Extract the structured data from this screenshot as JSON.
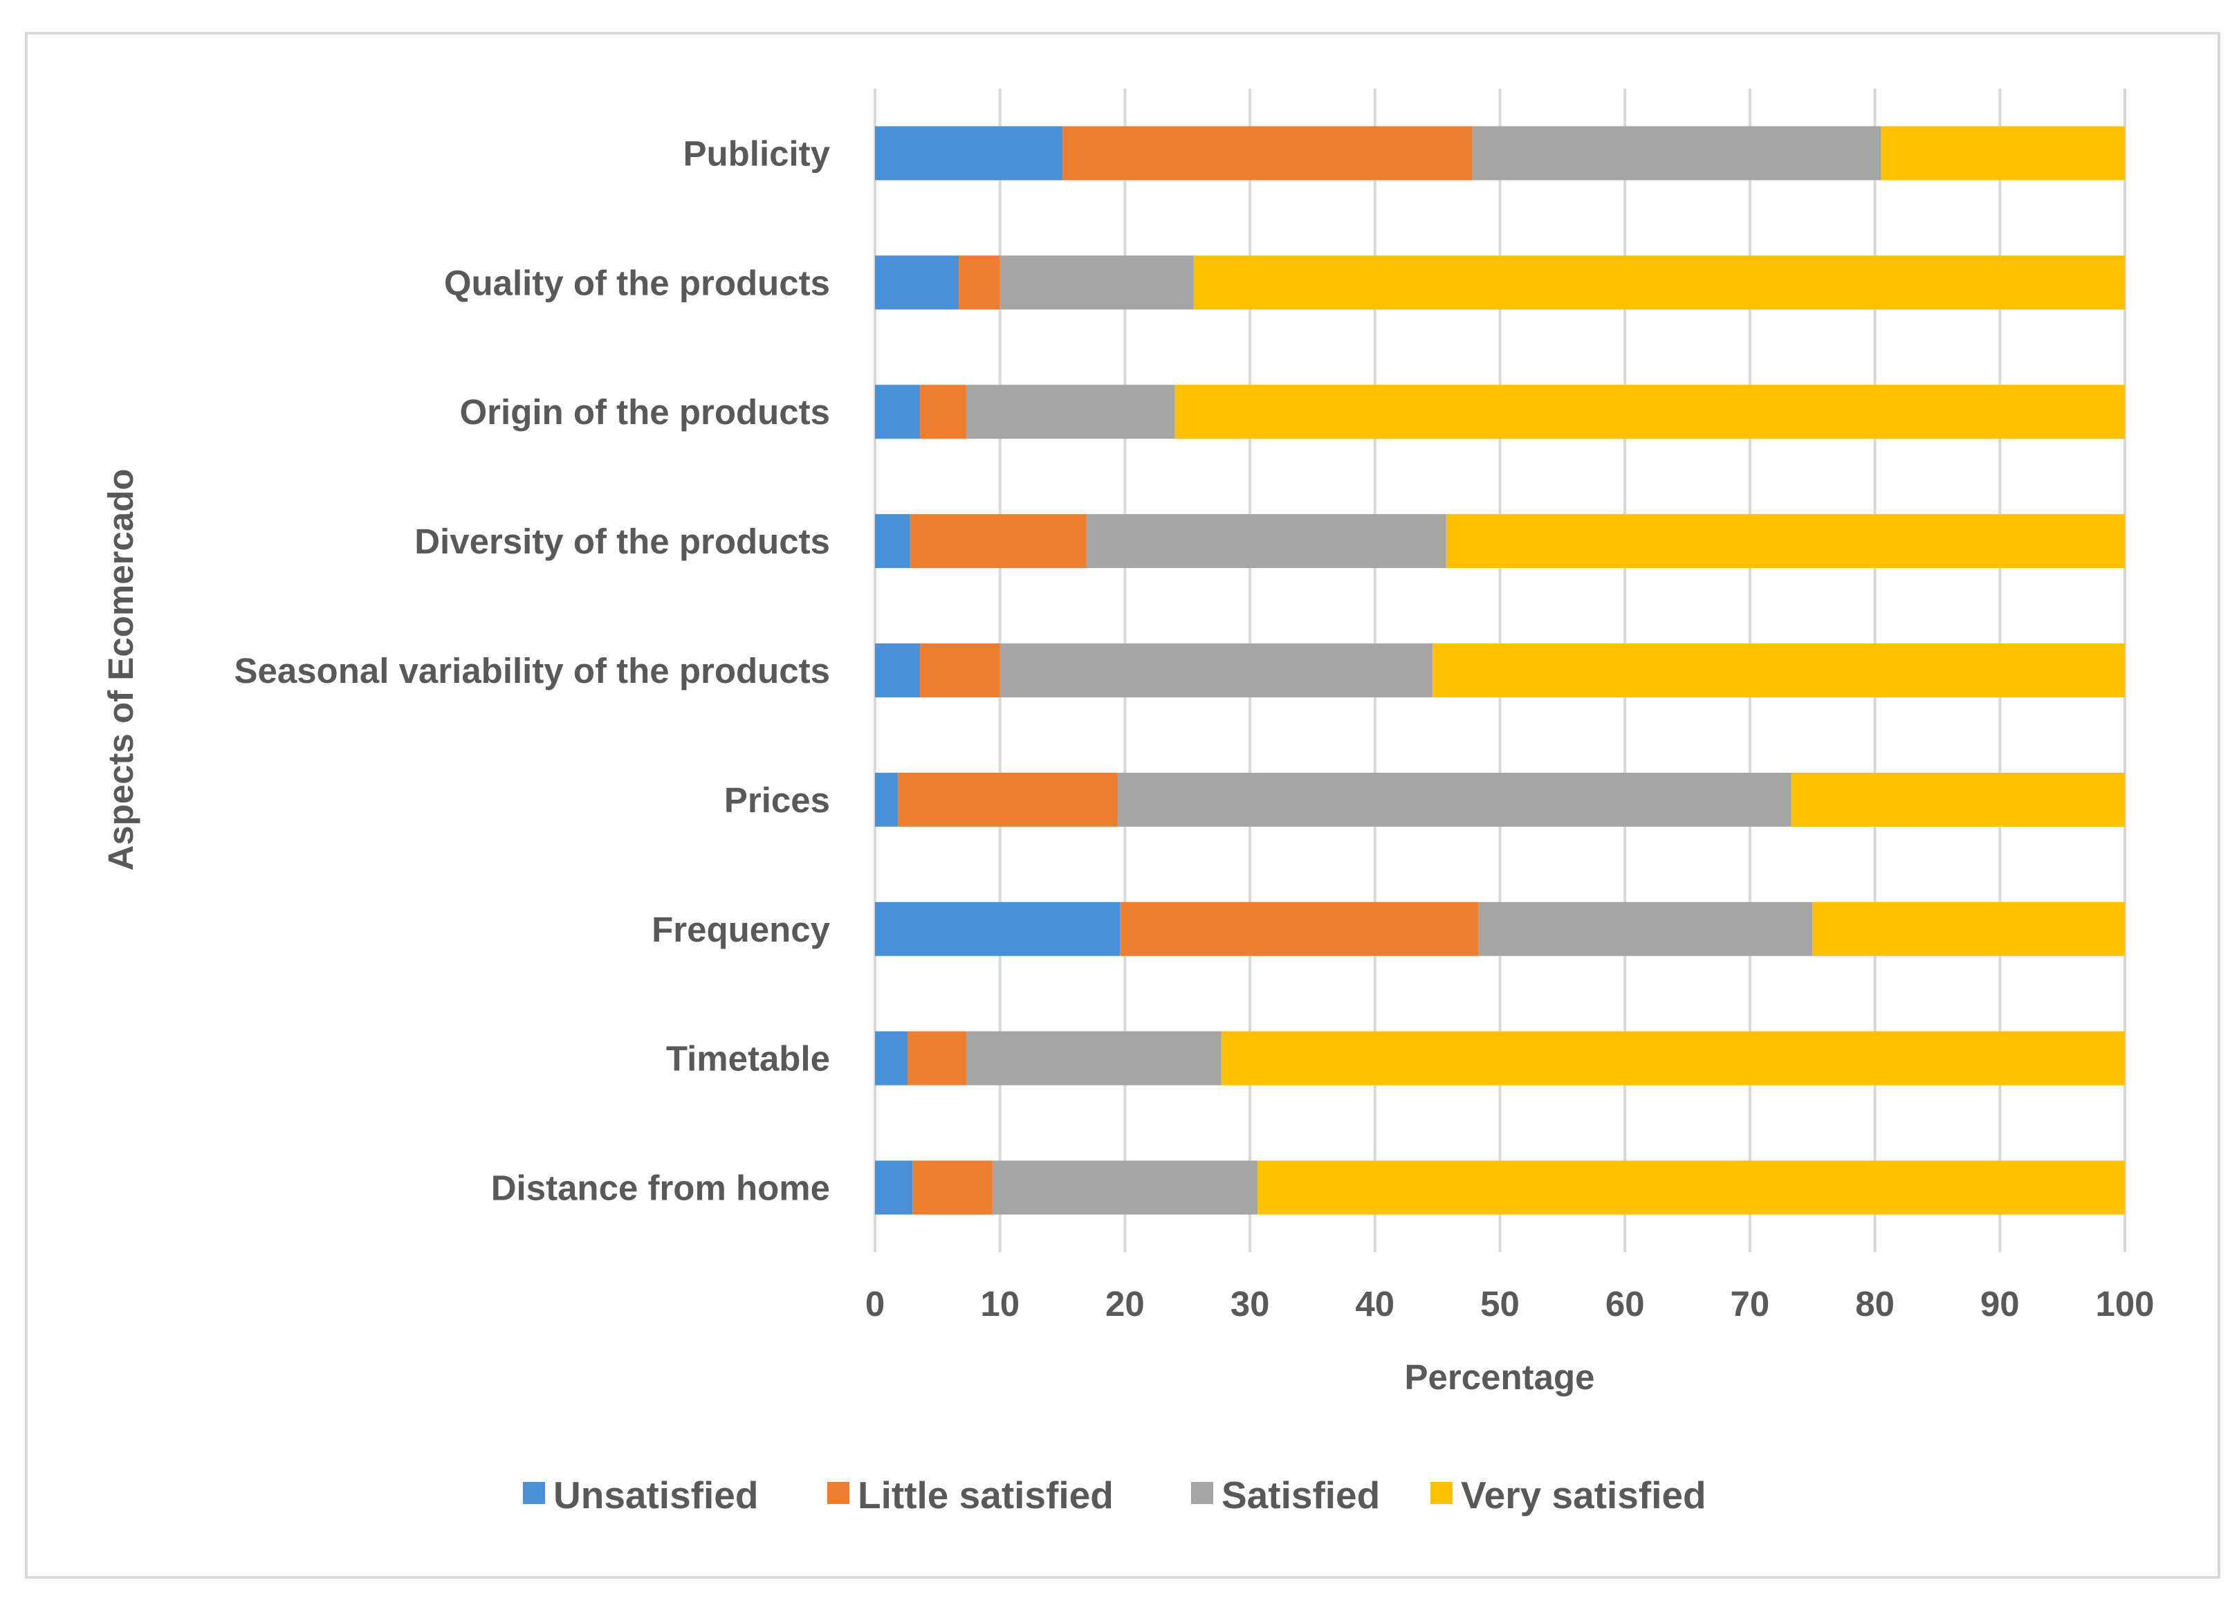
{
  "chart_data": {
    "type": "bar",
    "orientation": "horizontal",
    "stacked": true,
    "title": "",
    "xlabel": "Percentage",
    "ylabel": "Aspects of Ecomercado",
    "xlim": [
      0,
      100
    ],
    "xticks": [
      0,
      10,
      20,
      30,
      40,
      50,
      60,
      70,
      80,
      90,
      100
    ],
    "grid": true,
    "legend_position": "bottom",
    "categories": [
      "Publicity",
      "Quality of the products",
      "Origin of the products",
      "Diversity of the products",
      "Seasonal variability of the products",
      "Prices",
      "Frequency",
      "Timetable",
      "Distance from home"
    ],
    "series": [
      {
        "name": "Unsatisfied",
        "color": "#4a90d9",
        "values": [
          15.0,
          6.7,
          3.6,
          2.8,
          3.6,
          1.8,
          19.6,
          2.6,
          3.0
        ]
      },
      {
        "name": "Little satisfied",
        "color": "#ed7d31",
        "values": [
          32.8,
          3.3,
          3.7,
          14.1,
          6.4,
          17.6,
          28.7,
          4.7,
          6.4
        ]
      },
      {
        "name": "Satisfied",
        "color": "#a5a5a5",
        "values": [
          32.7,
          15.5,
          16.7,
          28.8,
          34.6,
          53.9,
          26.7,
          20.4,
          21.2
        ]
      },
      {
        "name": "Very satisfied",
        "color": "#ffc000",
        "values": [
          19.5,
          74.5,
          76.0,
          54.3,
          55.4,
          26.7,
          25.0,
          72.3,
          69.4
        ]
      }
    ]
  }
}
